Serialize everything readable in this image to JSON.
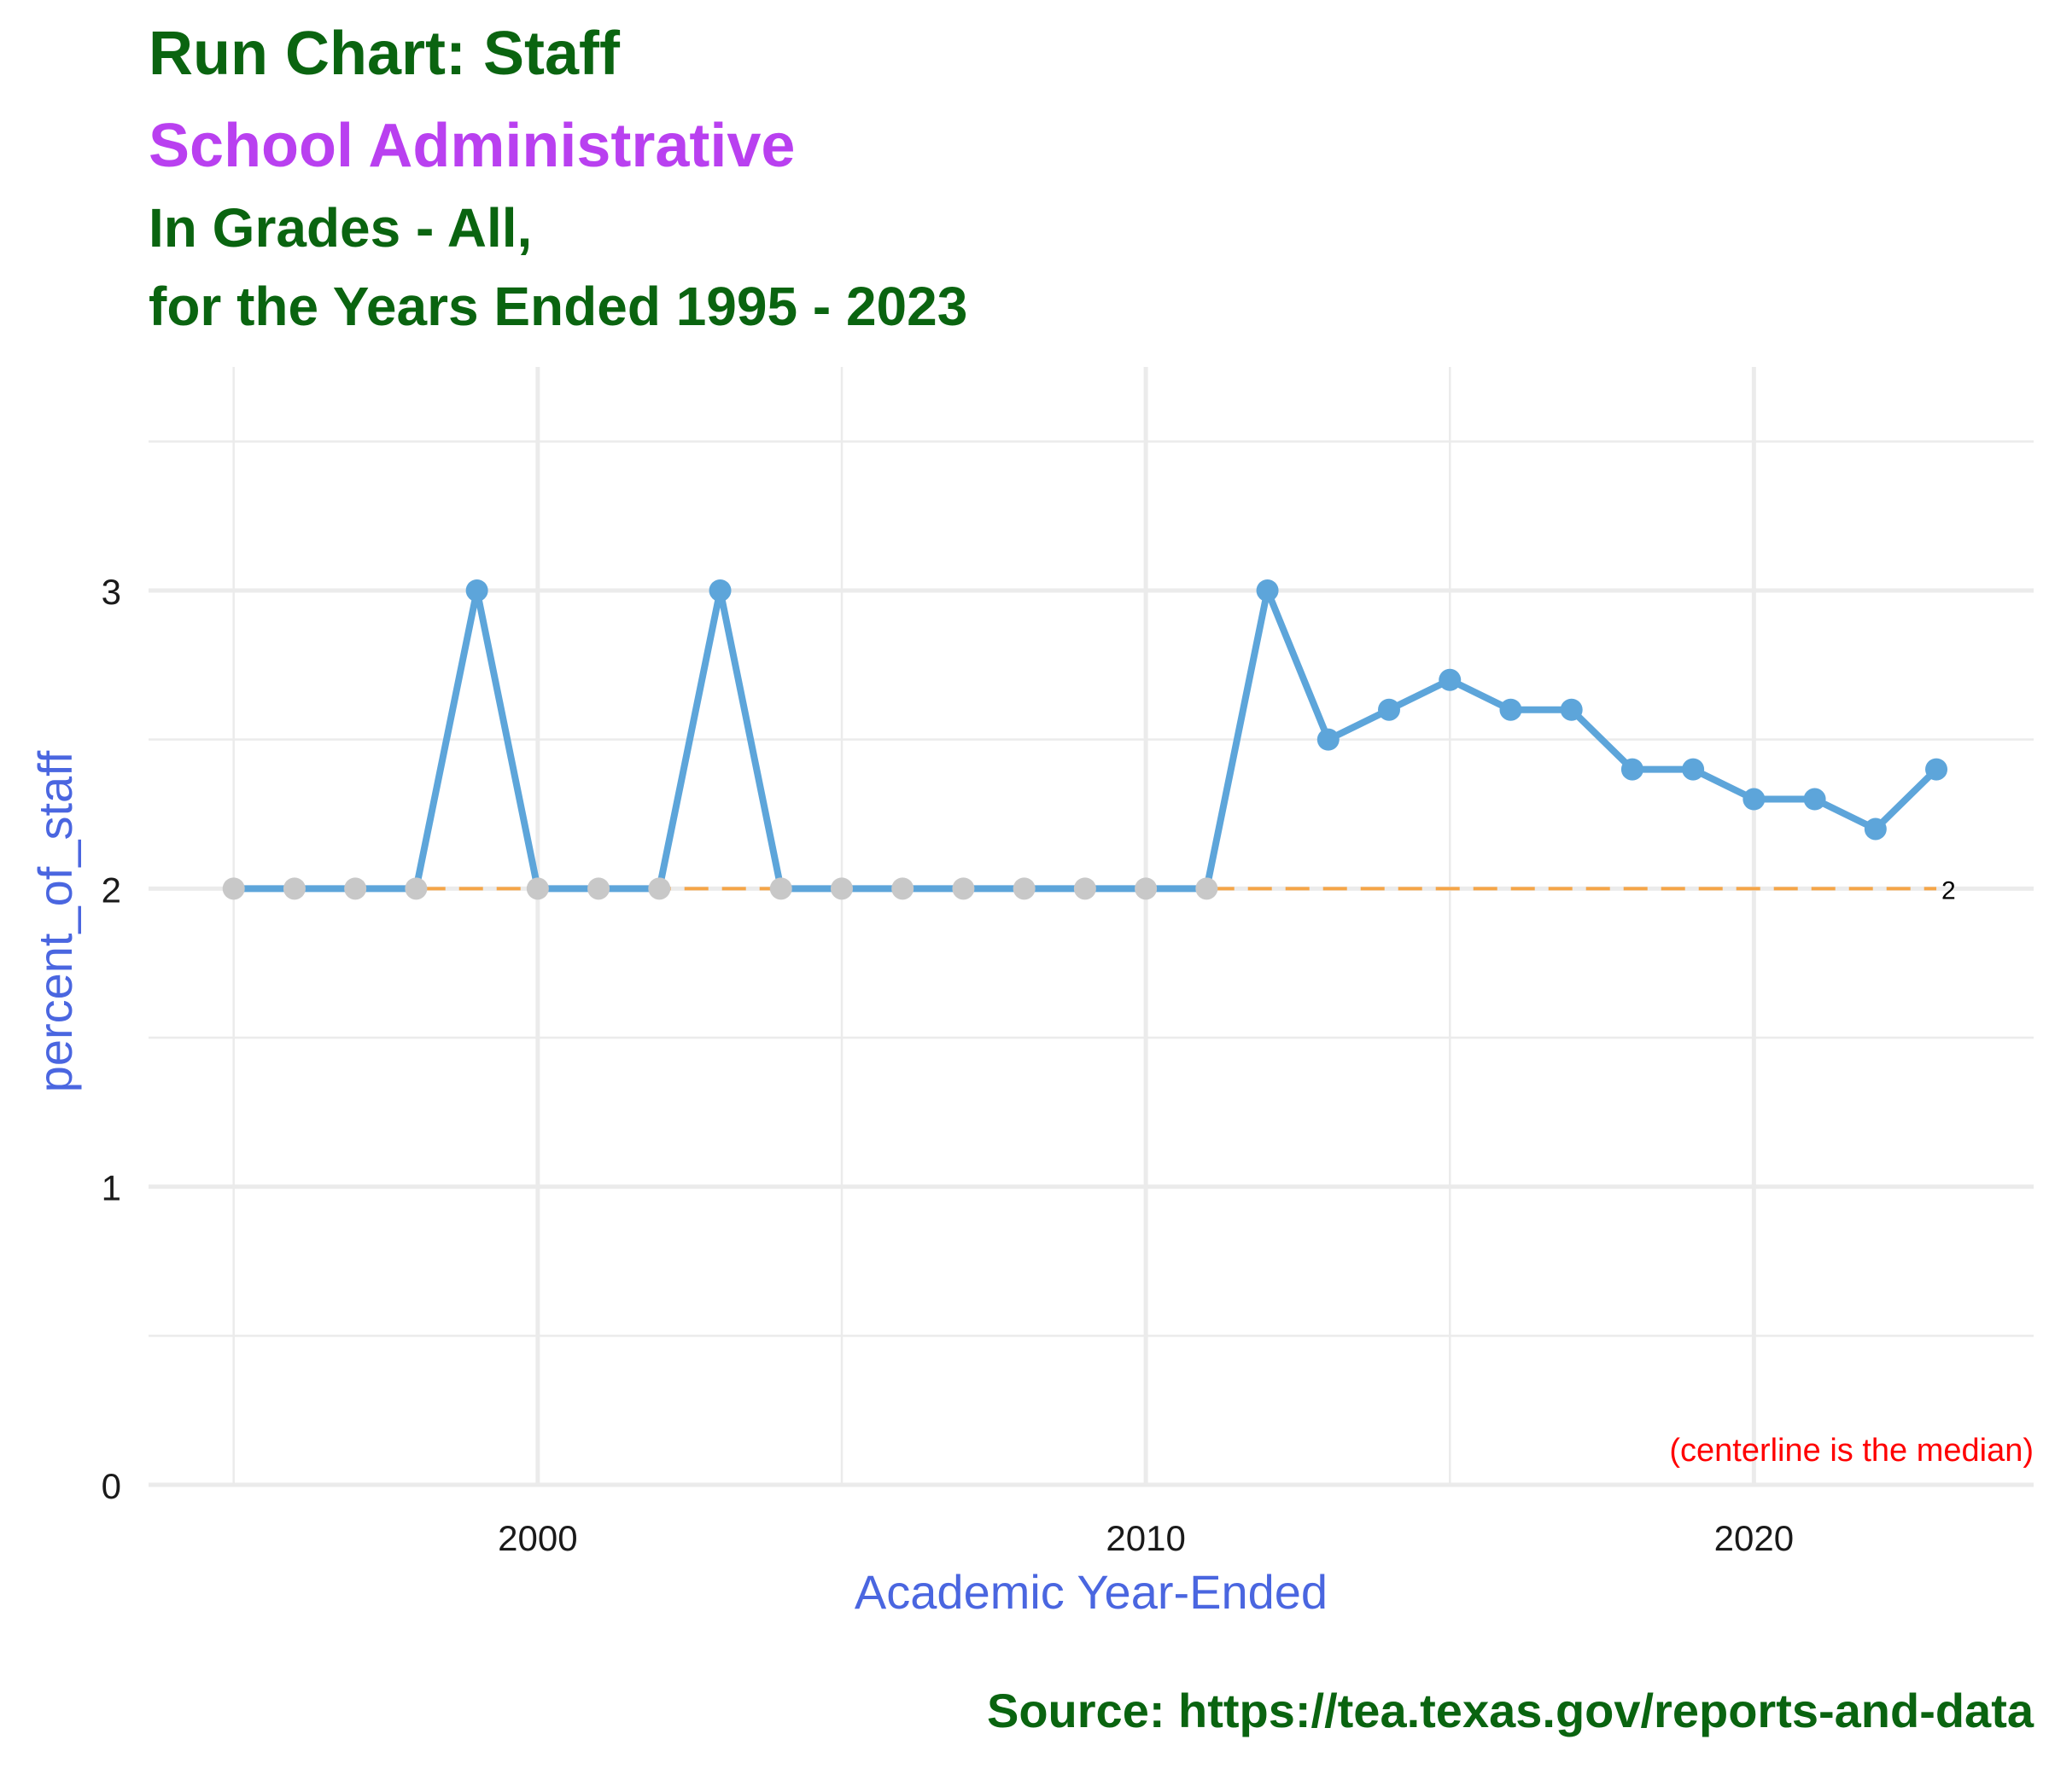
{
  "chart_data": {
    "type": "line",
    "title": "Run Chart: Staff",
    "subtitle": "School Administrative",
    "subtitle_lines": [
      "In Grades - All,",
      "for the Years Ended 1995 - 2023"
    ],
    "xlabel": "Academic Year-Ended",
    "ylabel": "percent_of_staff",
    "caption": "Source:  https://tea.texas.gov/reports-and-data",
    "annotation": "(centerline is the median)",
    "x": [
      1995,
      1996,
      1997,
      1998,
      1999,
      2000,
      2001,
      2002,
      2003,
      2004,
      2005,
      2006,
      2007,
      2008,
      2009,
      2010,
      2011,
      2012,
      2013,
      2014,
      2015,
      2016,
      2017,
      2018,
      2019,
      2020,
      2021,
      2022,
      2023
    ],
    "values": [
      2,
      2,
      2,
      2,
      3,
      2,
      2,
      2,
      3,
      2,
      2,
      2,
      2,
      2,
      2,
      2,
      2,
      3,
      2.5,
      2.6,
      2.7,
      2.6,
      2.6,
      2.4,
      2.4,
      2.3,
      2.3,
      2.2,
      2.4
    ],
    "median": 2,
    "median_label": "2",
    "xlim": [
      1993.6,
      2024.6
    ],
    "ylim": [
      0,
      3.75
    ],
    "x_ticks": [
      2000,
      2010,
      2020
    ],
    "y_ticks": [
      0,
      1,
      2,
      3
    ],
    "grid": true,
    "colors": {
      "line": "#5da5da",
      "point_on_median": "#c8c8c8",
      "median_line": "#f5a547",
      "title": "#0a6410",
      "subtitle": "#b940f0",
      "axis_title": "#4a66e0",
      "annotation": "#ff0000",
      "grid": "#ebebeb"
    }
  }
}
